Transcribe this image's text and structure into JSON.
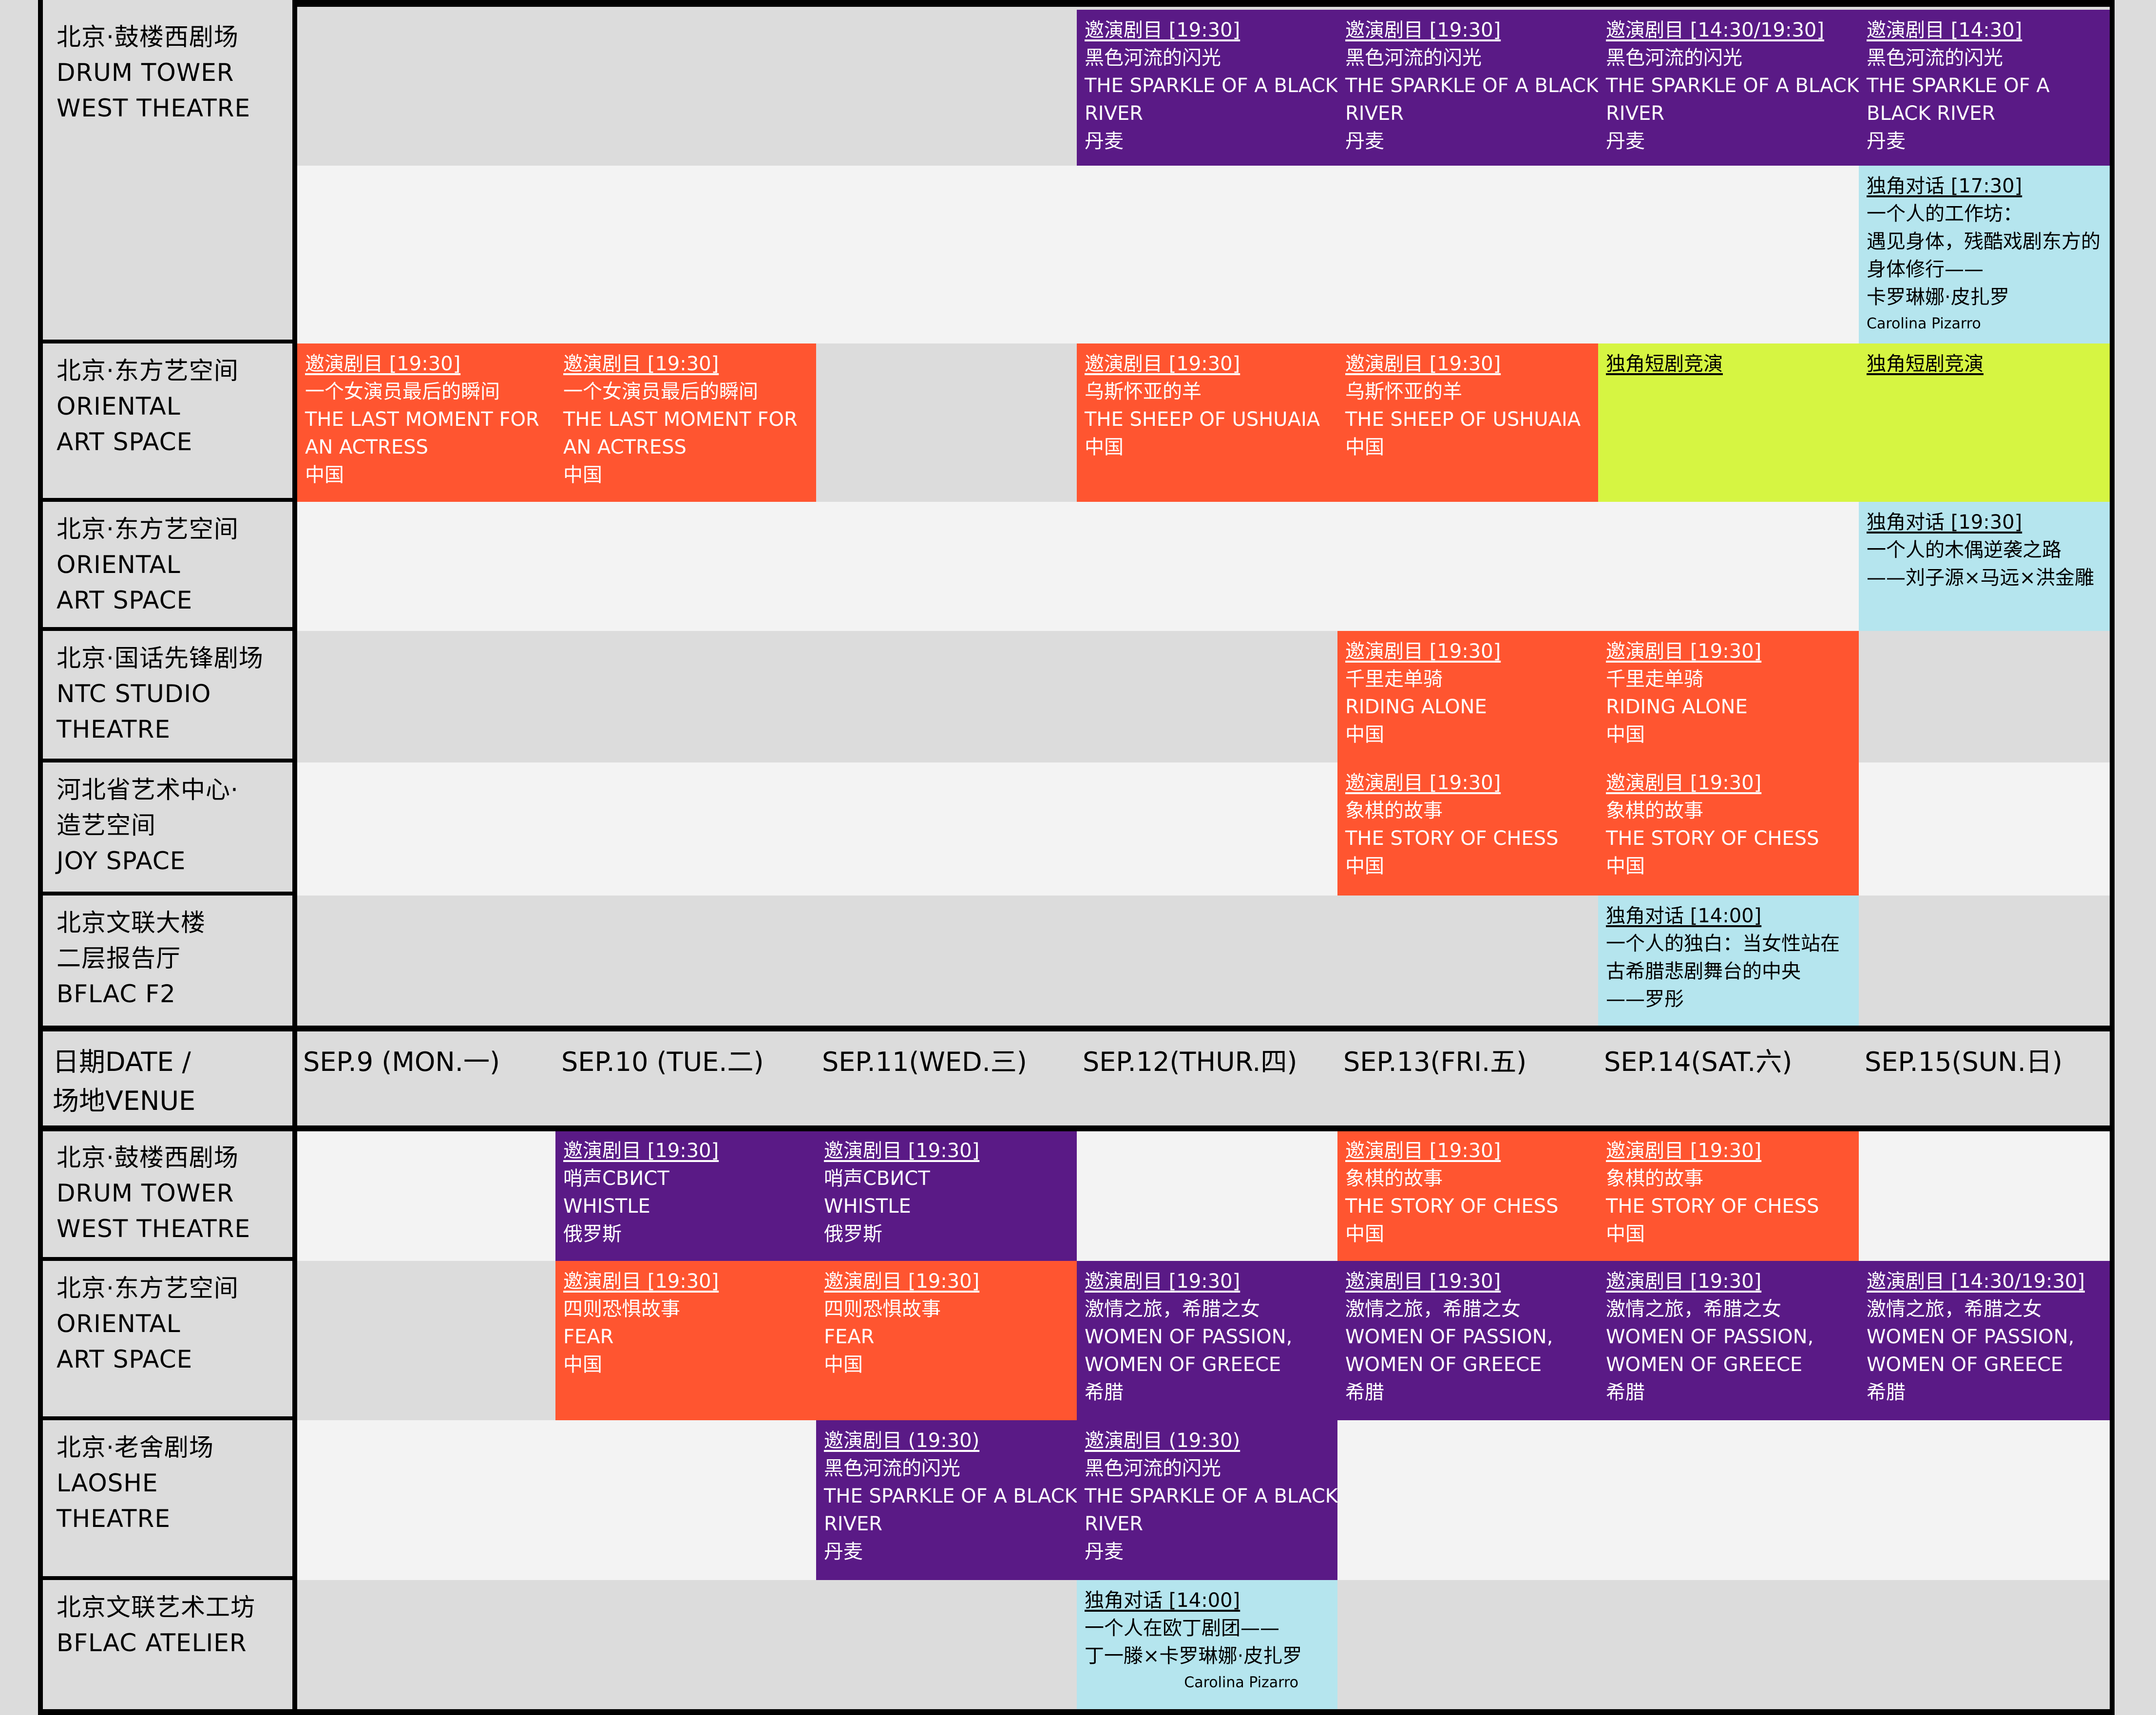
{
  "colors": {
    "invited": "#5a1a86",
    "invited_red": "#ff5530",
    "monodialogue": "#b5e5ee",
    "competition": "#d6f542",
    "venue_bg": "#dcdcdc",
    "row_light": "#f3f3f3",
    "row_gray": "#dcdcdc"
  },
  "header": {
    "venue_label": [
      "日期DATE /",
      "场地VENUE"
    ],
    "dates": [
      "SEP.9 (MON.一)",
      "SEP.10 (TUE.二)",
      "SEP.11(WED.三)",
      "SEP.12(THUR.四)",
      "SEP.13(FRI.五)",
      "SEP.14(SAT.六)",
      "SEP.15(SUN.日)"
    ]
  },
  "week1": {
    "venues": [
      {
        "lines": [
          "北京·鼓楼西剧场",
          "DRUM TOWER",
          "WEST THEATRE"
        ],
        "rows": 2
      },
      {
        "lines": [
          "北京·东方艺空间",
          "ORIENTAL",
          "ART SPACE"
        ],
        "rows": 1
      },
      {
        "lines": [
          "北京·东方艺空间",
          "ORIENTAL",
          "ART SPACE"
        ],
        "rows": 1
      },
      {
        "lines": [
          "北京·国话先锋剧场",
          "NTC STUDIO",
          "THEATRE"
        ],
        "rows": 1
      },
      {
        "lines": [
          "河北省艺术中心·",
          "造艺空间",
          "JOY SPACE"
        ],
        "rows": 1
      },
      {
        "lines": [
          "北京文联大楼",
          "二层报告厅",
          "BFLAC F2"
        ],
        "rows": 1
      }
    ],
    "events": [
      {
        "row": 0,
        "col": 3,
        "span": 1,
        "kind": "invited",
        "lines": [
          "邀演剧目 [19:30]",
          "黑色河流的闪光",
          "THE SPARKLE OF A BLACK",
          "RIVER",
          "丹麦"
        ]
      },
      {
        "row": 0,
        "col": 4,
        "span": 1,
        "kind": "invited",
        "lines": [
          "邀演剧目 [19:30]",
          "黑色河流的闪光",
          "THE SPARKLE OF A BLACK",
          "RIVER",
          "丹麦"
        ]
      },
      {
        "row": 0,
        "col": 5,
        "span": 1,
        "kind": "invited",
        "lines": [
          "邀演剧目 [14:30/19:30]",
          "黑色河流的闪光",
          "THE SPARKLE OF A BLACK",
          "RIVER",
          "丹麦"
        ]
      },
      {
        "row": 0,
        "col": 6,
        "span": 1,
        "kind": "invited",
        "lines": [
          "邀演剧目 [14:30]",
          "黑色河流的闪光",
          "THE SPARKLE OF A",
          "BLACK RIVER",
          "丹麦"
        ]
      },
      {
        "row": 1,
        "col": 6,
        "span": 1,
        "kind": "monodialogue",
        "lines": [
          "独角对话 [17:30]",
          "一个人的工作坊：",
          "遇见身体，残酷戏剧东方的",
          "身体修行——",
          "卡罗琳娜·皮扎罗"
        ],
        "small": "Carolina Pizarro"
      },
      {
        "row": 2,
        "col": 0,
        "span": 1,
        "kind": "invited_red",
        "lines": [
          "邀演剧目 [19:30]",
          "一个女演员最后的瞬间",
          "THE LAST MOMENT FOR",
          "AN ACTRESS",
          "中国"
        ]
      },
      {
        "row": 2,
        "col": 1,
        "span": 1,
        "kind": "invited_red",
        "lines": [
          "邀演剧目 [19:30]",
          "一个女演员最后的瞬间",
          "THE LAST MOMENT FOR",
          "AN ACTRESS",
          "中国"
        ]
      },
      {
        "row": 2,
        "col": 3,
        "span": 1,
        "kind": "invited_red",
        "lines": [
          "邀演剧目 [19:30]",
          "乌斯怀亚的羊",
          "THE SHEEP OF USHUAIA",
          "中国"
        ]
      },
      {
        "row": 2,
        "col": 4,
        "span": 1,
        "kind": "invited_red",
        "lines": [
          "邀演剧目 [19:30]",
          "乌斯怀亚的羊",
          "THE SHEEP OF USHUAIA",
          "中国"
        ]
      },
      {
        "row": 2,
        "col": 5,
        "span": 1,
        "kind": "competition",
        "lines": [
          "独角短剧竞演"
        ]
      },
      {
        "row": 2,
        "col": 6,
        "span": 1,
        "kind": "competition",
        "lines": [
          "独角短剧竞演"
        ]
      },
      {
        "row": 3,
        "col": 6,
        "span": 1,
        "kind": "monodialogue",
        "lines": [
          "独角对话 [19:30]",
          "一个人的木偶逆袭之路",
          "——刘子源×马远×洪金雕"
        ]
      },
      {
        "row": 4,
        "col": 4,
        "span": 1,
        "kind": "invited_red",
        "lines": [
          "邀演剧目 [19:30]",
          "千里走单骑",
          "RIDING ALONE",
          "中国"
        ]
      },
      {
        "row": 4,
        "col": 5,
        "span": 1,
        "kind": "invited_red",
        "lines": [
          "邀演剧目 [19:30]",
          "千里走单骑",
          "RIDING ALONE",
          "中国"
        ]
      },
      {
        "row": 5,
        "col": 4,
        "span": 1,
        "kind": "invited_red",
        "lines": [
          "邀演剧目 [19:30]",
          "象棋的故事",
          "THE STORY OF CHESS",
          "中国"
        ]
      },
      {
        "row": 5,
        "col": 5,
        "span": 1,
        "kind": "invited_red",
        "lines": [
          "邀演剧目 [19:30]",
          "象棋的故事",
          "THE STORY OF CHESS",
          "中国"
        ]
      },
      {
        "row": 6,
        "col": 5,
        "span": 1,
        "kind": "monodialogue",
        "lines": [
          "独角对话 [14:00]",
          "一个人的独白：当女性站在",
          "古希腊悲剧舞台的中央",
          "——罗彤"
        ]
      }
    ]
  },
  "week2": {
    "venues": [
      {
        "lines": [
          "北京·鼓楼西剧场",
          "DRUM TOWER",
          "WEST THEATRE"
        ]
      },
      {
        "lines": [
          "北京·东方艺空间",
          "ORIENTAL",
          "ART SPACE"
        ]
      },
      {
        "lines": [
          "北京·老舍剧场",
          "LAOSHE",
          "THEATRE"
        ]
      },
      {
        "lines": [
          "北京文联艺术工坊",
          "BFLAC ATELIER"
        ]
      }
    ],
    "events": [
      {
        "row": 0,
        "col": 1,
        "span": 1,
        "kind": "invited",
        "lines": [
          "邀演剧目 [19:30]",
          "哨声СВИСТ",
          "WHISTLE",
          "俄罗斯"
        ]
      },
      {
        "row": 0,
        "col": 2,
        "span": 1,
        "kind": "invited",
        "lines": [
          "邀演剧目 [19:30]",
          "哨声СВИСТ",
          "WHISTLE",
          "俄罗斯"
        ]
      },
      {
        "row": 0,
        "col": 4,
        "span": 1,
        "kind": "invited_red",
        "lines": [
          "邀演剧目 [19:30]",
          "象棋的故事",
          "THE STORY OF CHESS",
          "中国"
        ]
      },
      {
        "row": 0,
        "col": 5,
        "span": 1,
        "kind": "invited_red",
        "lines": [
          "邀演剧目 [19:30]",
          "象棋的故事",
          "THE STORY OF CHESS",
          "中国"
        ]
      },
      {
        "row": 1,
        "col": 1,
        "span": 1,
        "kind": "invited_red",
        "lines": [
          "邀演剧目 [19:30]",
          "四则恐惧故事",
          "FEAR",
          "中国"
        ]
      },
      {
        "row": 1,
        "col": 2,
        "span": 1,
        "kind": "invited_red",
        "lines": [
          "邀演剧目 [19:30]",
          "四则恐惧故事",
          "FEAR",
          "中国"
        ]
      },
      {
        "row": 1,
        "col": 3,
        "span": 1,
        "kind": "invited",
        "lines": [
          "邀演剧目 [19:30]",
          "激情之旅，希腊之女",
          "WOMEN OF PASSION,",
          "WOMEN OF GREECE",
          "希腊"
        ]
      },
      {
        "row": 1,
        "col": 4,
        "span": 1,
        "kind": "invited",
        "lines": [
          "邀演剧目 [19:30]",
          "激情之旅，希腊之女",
          "WOMEN OF PASSION,",
          "WOMEN OF GREECE",
          "希腊"
        ]
      },
      {
        "row": 1,
        "col": 5,
        "span": 1,
        "kind": "invited",
        "lines": [
          "邀演剧目 [19:30]",
          "激情之旅，希腊之女",
          "WOMEN OF PASSION,",
          "WOMEN OF GREECE",
          "希腊"
        ]
      },
      {
        "row": 1,
        "col": 6,
        "span": 1,
        "kind": "invited",
        "lines": [
          "邀演剧目 [14:30/19:30]",
          "激情之旅，希腊之女",
          "WOMEN OF PASSION,",
          "WOMEN OF GREECE",
          "希腊"
        ]
      },
      {
        "row": 2,
        "col": 2,
        "span": 1,
        "kind": "invited",
        "lines": [
          "邀演剧目 (19:30)",
          "黑色河流的闪光",
          "THE SPARKLE OF A BLACK",
          "RIVER",
          "丹麦"
        ]
      },
      {
        "row": 2,
        "col": 3,
        "span": 1,
        "kind": "invited",
        "lines": [
          "邀演剧目 (19:30)",
          "黑色河流的闪光",
          "THE SPARKLE OF A BLACK",
          "RIVER",
          "丹麦"
        ]
      },
      {
        "row": 3,
        "col": 3,
        "span": 1,
        "kind": "monodialogue",
        "lines": [
          "独角对话 [14:00]",
          "一个人在欧丁剧团——",
          "丁一滕×卡罗琳娜·皮扎罗"
        ],
        "small": "Carolina Pizarro",
        "small_right": true
      }
    ]
  }
}
